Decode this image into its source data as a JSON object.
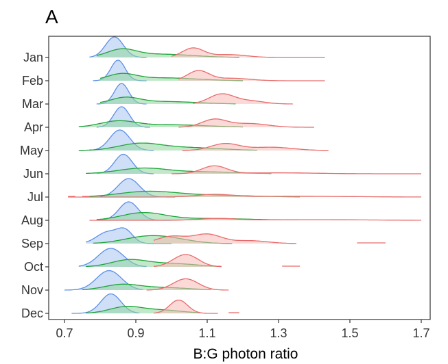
{
  "chart_data": {
    "type": "ridgeline",
    "panel_label": "A",
    "xlabel": "B:G photon ratio",
    "ylabel": "",
    "xlim": [
      0.7,
      1.7
    ],
    "x_ticks": [
      0.7,
      0.9,
      1.1,
      1.3,
      1.5,
      1.7
    ],
    "x_tick_labels": [
      "0.7",
      "0.9",
      "1.1",
      "1.3",
      "1.5",
      "1.7"
    ],
    "categories": [
      "Jan",
      "Feb",
      "Mar",
      "Apr",
      "May",
      "Jun",
      "Jul",
      "Aug",
      "Sep",
      "Oct",
      "Nov",
      "Dec"
    ],
    "grid": false,
    "legend": "none",
    "series": [
      {
        "color_line": "#5b8fe6",
        "color_fill": "#a9c4f2",
        "ridges": [
          {
            "min": 0.77,
            "max": 0.93,
            "peaks": [
              [
                0.84,
                0.025,
                1.0
              ]
            ]
          },
          {
            "min": 0.78,
            "max": 0.93,
            "peaks": [
              [
                0.85,
                0.02,
                1.0
              ]
            ]
          },
          {
            "min": 0.79,
            "max": 0.93,
            "peaks": [
              [
                0.86,
                0.02,
                1.0
              ]
            ]
          },
          {
            "min": 0.79,
            "max": 0.94,
            "peaks": [
              [
                0.86,
                0.022,
                1.0
              ]
            ]
          },
          {
            "min": 0.77,
            "max": 0.95,
            "peaks": [
              [
                0.855,
                0.028,
                1.0
              ]
            ]
          },
          {
            "min": 0.79,
            "max": 0.95,
            "peaks": [
              [
                0.865,
                0.025,
                0.95
              ]
            ]
          },
          {
            "min": 0.8,
            "max": 1.01,
            "peaks": [
              [
                0.88,
                0.03,
                0.9
              ]
            ]
          },
          {
            "min": 0.8,
            "max": 1.0,
            "peaks": [
              [
                0.88,
                0.027,
                0.9
              ]
            ]
          },
          {
            "min": 0.76,
            "max": 1.0,
            "peaks": [
              [
                0.82,
                0.03,
                0.55
              ],
              [
                0.87,
                0.022,
                0.6
              ]
            ]
          },
          {
            "min": 0.74,
            "max": 0.93,
            "peaks": [
              [
                0.83,
                0.035,
                0.9
              ]
            ]
          },
          {
            "min": 0.7,
            "max": 0.92,
            "peaks": [
              [
                0.825,
                0.035,
                0.95
              ]
            ]
          },
          {
            "min": 0.72,
            "max": 0.91,
            "peaks": [
              [
                0.83,
                0.028,
                0.95
              ]
            ]
          }
        ]
      },
      {
        "color_line": "#1ea33a",
        "color_fill": "#8fd69d",
        "ridges": [
          {
            "min": 0.79,
            "max": 1.19,
            "peaks": [
              [
                0.86,
                0.04,
                0.35
              ],
              [
                0.97,
                0.09,
                0.16
              ]
            ]
          },
          {
            "min": 0.8,
            "max": 1.2,
            "peaks": [
              [
                0.86,
                0.04,
                0.3
              ],
              [
                0.98,
                0.09,
                0.14
              ]
            ]
          },
          {
            "min": 0.8,
            "max": 1.18,
            "peaks": [
              [
                0.87,
                0.04,
                0.28
              ],
              [
                0.98,
                0.09,
                0.12
              ]
            ]
          },
          {
            "min": 0.74,
            "max": 1.2,
            "peaks": [
              [
                0.85,
                0.05,
                0.28
              ],
              [
                1.0,
                0.1,
                0.12
              ]
            ]
          },
          {
            "min": 0.74,
            "max": 1.24,
            "peaks": [
              [
                0.91,
                0.06,
                0.32
              ],
              [
                1.05,
                0.09,
                0.14
              ]
            ]
          },
          {
            "min": 0.76,
            "max": 1.28,
            "peaks": [
              [
                0.92,
                0.07,
                0.27
              ],
              [
                1.1,
                0.09,
                0.09
              ]
            ]
          },
          {
            "min": 0.77,
            "max": 1.36,
            "peaks": [
              [
                0.93,
                0.08,
                0.25
              ],
              [
                1.1,
                0.12,
                0.09
              ]
            ]
          },
          {
            "min": 0.79,
            "max": 1.31,
            "peaks": [
              [
                0.92,
                0.06,
                0.35
              ],
              [
                1.1,
                0.12,
                0.09
              ]
            ]
          },
          {
            "min": 0.78,
            "max": 1.17,
            "peaks": [
              [
                0.92,
                0.06,
                0.28
              ],
              [
                1.0,
                0.06,
                0.2
              ]
            ]
          },
          {
            "min": 0.76,
            "max": 1.14,
            "peaks": [
              [
                0.88,
                0.05,
                0.32
              ],
              [
                1.0,
                0.07,
                0.16
              ]
            ]
          },
          {
            "min": 0.75,
            "max": 1.11,
            "peaks": [
              [
                0.86,
                0.05,
                0.26
              ],
              [
                0.98,
                0.07,
                0.12
              ]
            ]
          },
          {
            "min": 0.76,
            "max": 1.08,
            "peaks": [
              [
                0.87,
                0.045,
                0.3
              ],
              [
                0.97,
                0.06,
                0.16
              ]
            ]
          }
        ]
      },
      {
        "color_line": "#e86b6b",
        "color_fill": "#f6b9b5",
        "ridges": [
          {
            "min": 1.0,
            "max": 1.43,
            "peaks": [
              [
                1.06,
                0.03,
                0.45
              ],
              [
                1.16,
                0.05,
                0.14
              ]
            ]
          },
          {
            "min": 1.02,
            "max": 1.43,
            "peaks": [
              [
                1.075,
                0.03,
                0.48
              ],
              [
                1.17,
                0.05,
                0.12
              ]
            ]
          },
          {
            "min": 1.06,
            "max": 1.34,
            "peaks": [
              [
                1.14,
                0.035,
                0.48
              ],
              [
                1.22,
                0.04,
                0.15
              ]
            ]
          },
          {
            "min": 1.02,
            "max": 1.4,
            "peaks": [
              [
                1.12,
                0.035,
                0.38
              ],
              [
                1.22,
                0.05,
                0.18
              ]
            ]
          },
          {
            "min": 1.03,
            "max": 1.44,
            "peaks": [
              [
                1.15,
                0.04,
                0.33
              ],
              [
                1.28,
                0.06,
                0.16
              ]
            ]
          },
          {
            "min": 1.0,
            "max": 1.7,
            "peaks": [
              [
                1.12,
                0.035,
                0.38
              ],
              [
                1.3,
                0.1,
                0.05
              ]
            ]
          },
          {
            "min": 0.71,
            "max": 1.7,
            "peaks": [
              [
                1.12,
                0.05,
                0.12
              ],
              [
                1.35,
                0.15,
                0.04
              ]
            ]
          },
          {
            "min": 0.77,
            "max": 1.7,
            "peaks": [
              [
                1.13,
                0.05,
                0.09
              ],
              [
                1.4,
                0.15,
                0.03
              ]
            ]
          },
          {
            "min": 0.95,
            "max": 1.35,
            "peaks": [
              [
                1.0,
                0.04,
                0.35
              ],
              [
                1.1,
                0.04,
                0.45
              ],
              [
                1.22,
                0.05,
                0.14
              ]
            ]
          },
          {
            "min": 0.95,
            "max": 1.14,
            "peaks": [
              [
                1.04,
                0.035,
                0.6
              ]
            ]
          },
          {
            "min": 0.93,
            "max": 1.16,
            "peaks": [
              [
                1.04,
                0.035,
                0.55
              ]
            ]
          },
          {
            "min": 0.95,
            "max": 1.13,
            "peaks": [
              [
                1.02,
                0.025,
                0.65
              ]
            ]
          }
        ]
      }
    ],
    "extra_segments": [
      {
        "category": "Jul",
        "from": 0.71,
        "to": 0.73,
        "color": "#e86b6b"
      },
      {
        "category": "Jul",
        "from": 0.75,
        "to": 0.77,
        "color": "#e86b6b"
      },
      {
        "category": "Sep",
        "from": 1.52,
        "to": 1.6,
        "color": "#e86b6b"
      },
      {
        "category": "Oct",
        "from": 1.31,
        "to": 1.36,
        "color": "#e86b6b"
      },
      {
        "category": "Dec",
        "from": 1.16,
        "to": 1.19,
        "color": "#e86b6b"
      }
    ]
  }
}
